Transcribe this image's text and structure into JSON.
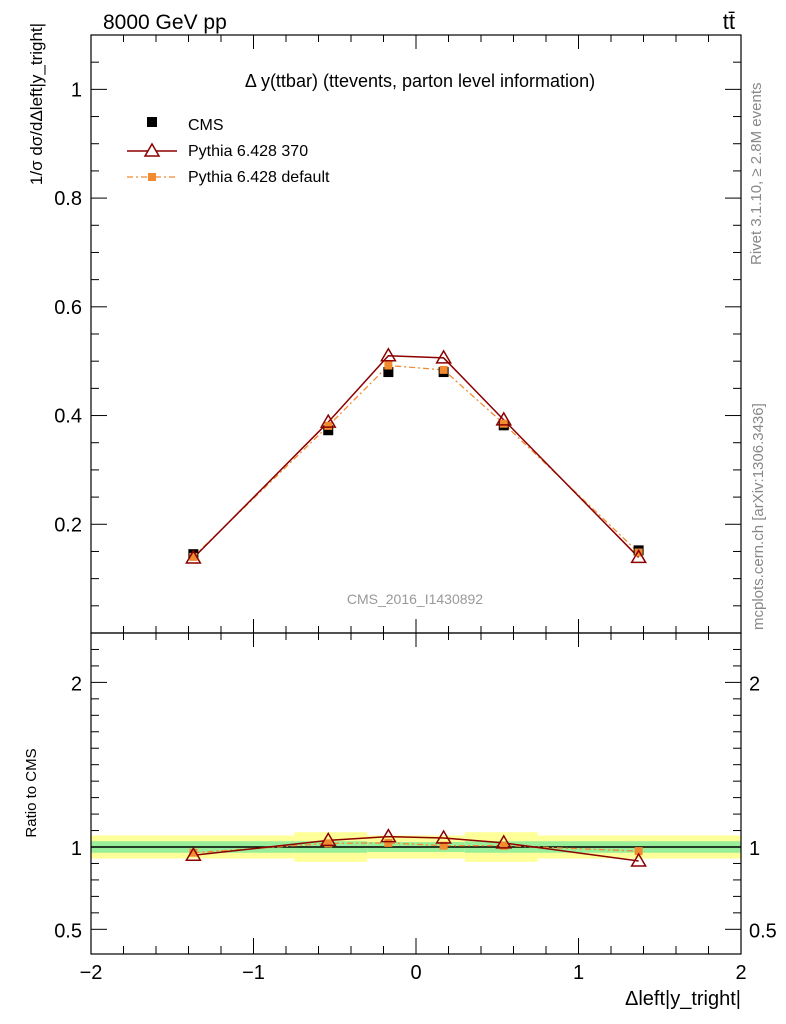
{
  "header": {
    "energy_label": "8000 GeV pp",
    "process_label": "tt̄",
    "analysis_id": "CMS_2016_I1430892",
    "rivet_label": "Rivet 3.1.10, ≥ 2.8M events",
    "mcplots_label": "mcplots.cern.ch [arXiv:1306.3436]"
  },
  "colors": {
    "cms": "#000000",
    "pythia370": "#8b0000",
    "pythia_default": "#f28b30",
    "band_inner": "#99ee99",
    "band_outer": "#ffff99"
  },
  "legend": {
    "cms": "CMS",
    "pythia370": "Pythia 6.428 370",
    "pythia_default": "Pythia 6.428 default"
  },
  "chart_data": [
    {
      "type": "line",
      "panel": "main",
      "title": "Δ y(ttbar) (ttevents, parton level information)",
      "ylabel": "1/σ dσ/dΔleft|y_tright|",
      "xlabel": "",
      "xlim": [
        -2,
        2
      ],
      "ylim": [
        0,
        1.1
      ],
      "yticks": [
        0.2,
        0.4,
        0.6,
        0.8,
        1
      ],
      "ytick_labels": [
        "0.2",
        "0.4",
        "0.6",
        "0.8",
        "1"
      ],
      "x": [
        -1.37,
        -0.54,
        -0.17,
        0.17,
        0.54,
        1.37
      ],
      "series": [
        {
          "name": "CMS",
          "values": [
            0.145,
            0.373,
            0.48,
            0.48,
            0.382,
            0.152
          ]
        },
        {
          "name": "Pythia 6.428 370",
          "values": [
            0.138,
            0.388,
            0.51,
            0.506,
            0.392,
            0.139
          ]
        },
        {
          "name": "Pythia 6.428 default",
          "values": [
            0.14,
            0.381,
            0.492,
            0.484,
            0.385,
            0.148
          ]
        }
      ]
    },
    {
      "type": "line",
      "panel": "ratio",
      "ylabel": "Ratio to CMS",
      "xlabel": "Δleft|y_tright|",
      "xlim": [
        -2,
        2
      ],
      "ylim": [
        0.35,
        2.3
      ],
      "yticks": [
        0.5,
        1,
        2
      ],
      "ytick_labels": [
        "0.5",
        "1",
        "2"
      ],
      "xticks": [
        -2,
        -1,
        0,
        1,
        2
      ],
      "xtick_labels": [
        "−2",
        "−1",
        "0",
        "1",
        "2"
      ],
      "x": [
        -1.37,
        -0.54,
        -0.17,
        0.17,
        0.54,
        1.37
      ],
      "bin_edges": [
        -2,
        -0.75,
        -0.3,
        0,
        0.3,
        0.75,
        2
      ],
      "band_inner": [
        0.035,
        0.035,
        0.03,
        0.03,
        0.035,
        0.035
      ],
      "band_outer": [
        0.07,
        0.09,
        0.07,
        0.07,
        0.09,
        0.07
      ],
      "series": [
        {
          "name": "Pythia 6.428 370",
          "values": [
            0.95,
            1.04,
            1.063,
            1.055,
            1.025,
            0.915
          ]
        },
        {
          "name": "Pythia 6.428 default",
          "values": [
            0.965,
            1.022,
            1.025,
            1.008,
            1.008,
            0.975
          ]
        }
      ]
    }
  ]
}
